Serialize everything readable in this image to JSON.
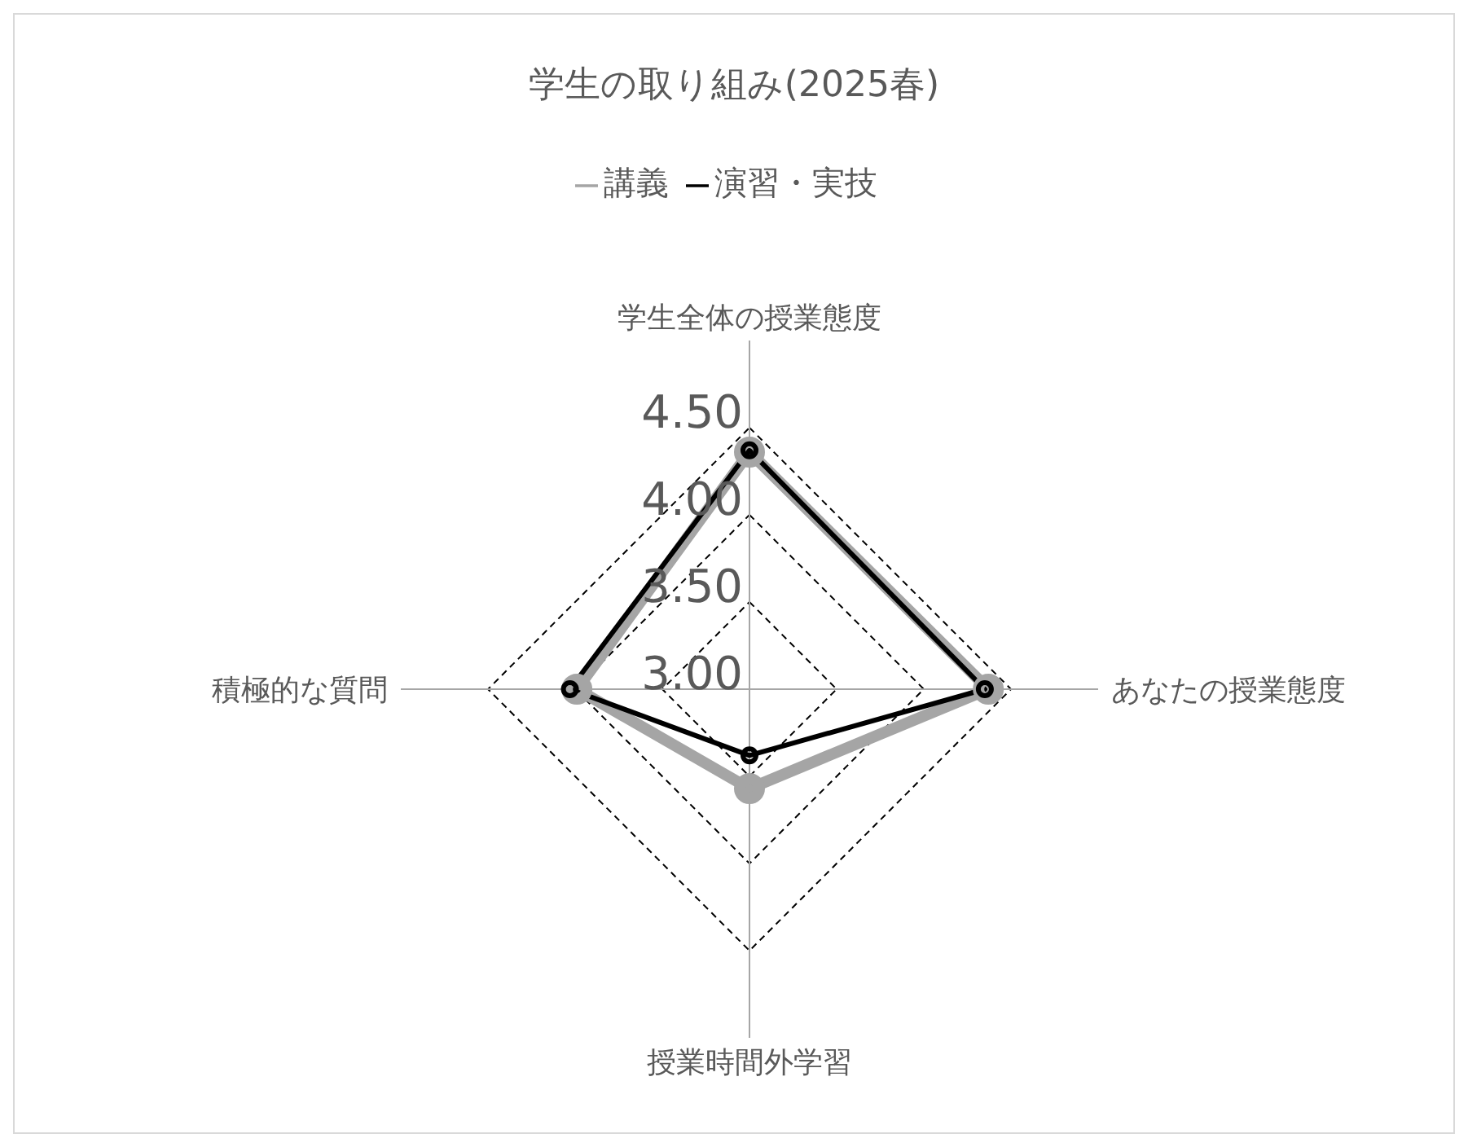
{
  "chart_data": {
    "type": "radar",
    "title": "学生の取り組み(2025春)",
    "categories": [
      "学生全体の授業態度",
      "あなたの授業態度",
      "授業時間外学習",
      "積極的な質問"
    ],
    "series": [
      {
        "name": "講義",
        "color": "#a5a5a5",
        "values": [
          4.36,
          4.37,
          3.57,
          3.99
        ]
      },
      {
        "name": "演習・実技",
        "color": "#000000",
        "values": [
          4.37,
          4.35,
          3.38,
          4.03
        ]
      }
    ],
    "ylim": [
      3,
      4.5
    ],
    "yticks": [
      {
        "value": 3,
        "label": "3.00"
      },
      {
        "value": 3.5,
        "label": "3.50"
      },
      {
        "value": 4,
        "label": "4.00"
      },
      {
        "value": 4.5,
        "label": "4.50"
      }
    ],
    "grid": true,
    "legend": "top",
    "marker": "circle",
    "line_style": "solid"
  }
}
